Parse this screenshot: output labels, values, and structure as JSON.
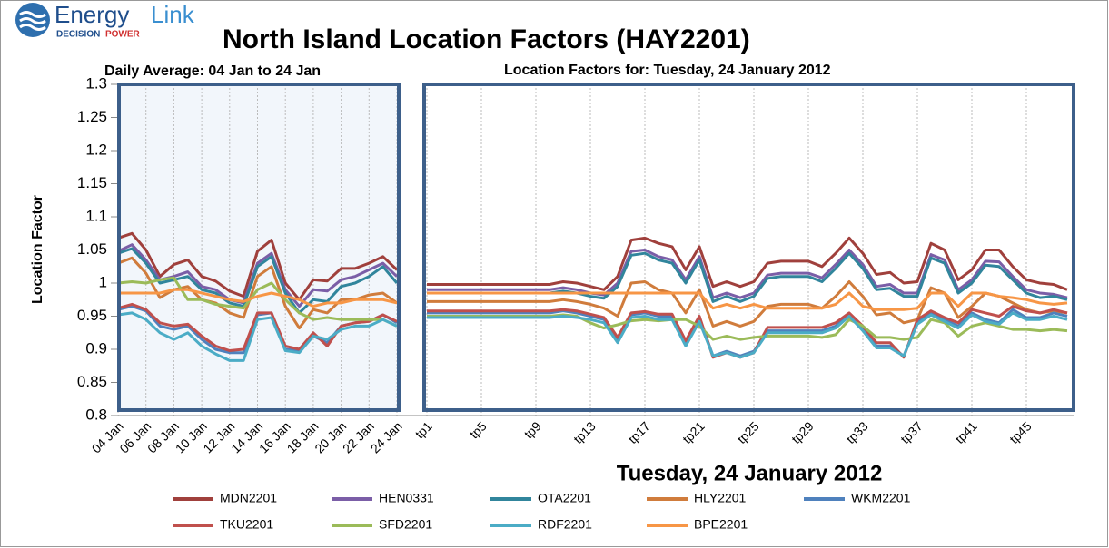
{
  "logo": {
    "words": [
      "Energy",
      "Link"
    ],
    "tagline": [
      "DECISION",
      "POWER"
    ]
  },
  "chart_data": [
    {
      "type": "line",
      "title": "North Island Location Factors (HAY2201)",
      "subtitle": "Daily Average: 04 Jan to 24 Jan",
      "ylabel": "Location Factor",
      "ylim": [
        0.8,
        1.3
      ],
      "yticks": [
        0.8,
        0.85,
        0.9,
        0.95,
        1,
        1.05,
        1.1,
        1.15,
        1.2,
        1.25,
        1.3
      ],
      "grid": true,
      "legend": "bottom",
      "categories": [
        "04 Jan",
        null,
        "06 Jan",
        null,
        "08 Jan",
        null,
        "10 Jan",
        null,
        "12 Jan",
        null,
        "14 Jan",
        null,
        "16 Jan",
        null,
        "18 Jan",
        null,
        "20 Jan",
        null,
        "22 Jan",
        null,
        "24 Jan"
      ],
      "series": [
        {
          "name": "MDN2201",
          "color": "#a0403c",
          "values": [
            1.068,
            1.075,
            1.05,
            1.01,
            1.028,
            1.035,
            1.01,
            1.003,
            0.988,
            0.98,
            1.048,
            1.065,
            1.0,
            0.975,
            1.005,
            1.003,
            1.022,
            1.022,
            1.03,
            1.04,
            1.02
          ]
        },
        {
          "name": "HEN0331",
          "color": "#7b5ea7",
          "values": [
            1.048,
            1.058,
            1.035,
            1.005,
            1.01,
            1.017,
            0.995,
            0.99,
            0.975,
            0.97,
            1.03,
            1.045,
            0.99,
            0.965,
            0.99,
            0.988,
            1.005,
            1.01,
            1.02,
            1.03,
            1.01
          ]
        },
        {
          "name": "OTA2201",
          "color": "#31859c",
          "values": [
            1.045,
            1.052,
            1.03,
            1.0,
            1.005,
            1.01,
            0.99,
            0.985,
            0.97,
            0.965,
            1.025,
            1.04,
            0.985,
            0.955,
            0.975,
            0.972,
            0.995,
            1.0,
            1.01,
            1.025,
            1.0
          ]
        },
        {
          "name": "HLY2201",
          "color": "#d07c3c",
          "values": [
            1.03,
            1.038,
            1.015,
            0.978,
            0.99,
            0.995,
            0.975,
            0.97,
            0.955,
            0.948,
            1.01,
            1.025,
            0.965,
            0.932,
            0.96,
            0.955,
            0.975,
            0.975,
            0.982,
            0.985,
            0.97
          ]
        },
        {
          "name": "WKM2201",
          "color": "#4f81bd",
          "values": [
            0.96,
            0.965,
            0.958,
            0.935,
            0.93,
            0.935,
            0.915,
            0.9,
            0.895,
            0.895,
            0.952,
            0.955,
            0.9,
            0.898,
            0.92,
            0.91,
            0.935,
            0.94,
            0.942,
            0.952,
            0.94
          ]
        },
        {
          "name": "TKU2201",
          "color": "#c0504d",
          "values": [
            0.962,
            0.968,
            0.96,
            0.94,
            0.935,
            0.938,
            0.92,
            0.905,
            0.898,
            0.9,
            0.955,
            0.955,
            0.905,
            0.9,
            0.925,
            0.905,
            0.935,
            0.94,
            0.942,
            0.952,
            0.942
          ]
        },
        {
          "name": "SFD2201",
          "color": "#9bbb59",
          "values": [
            1.0,
            1.002,
            1.0,
            1.005,
            1.008,
            0.975,
            0.975,
            0.968,
            0.965,
            0.962,
            0.99,
            1.0,
            0.975,
            0.955,
            0.945,
            0.948,
            0.945,
            0.945,
            0.945,
            0.945,
            0.935
          ]
        },
        {
          "name": "RDF2201",
          "color": "#4bacc6",
          "values": [
            0.952,
            0.955,
            0.945,
            0.925,
            0.915,
            0.925,
            0.905,
            0.893,
            0.883,
            0.883,
            0.945,
            0.948,
            0.898,
            0.895,
            0.92,
            0.915,
            0.93,
            0.935,
            0.935,
            0.945,
            0.935
          ]
        },
        {
          "name": "BPE2201",
          "color": "#f79646",
          "values": [
            0.985,
            0.985,
            0.985,
            0.985,
            0.99,
            0.99,
            0.985,
            0.98,
            0.975,
            0.972,
            0.98,
            0.985,
            0.98,
            0.975,
            0.965,
            0.97,
            0.97,
            0.975,
            0.975,
            0.975,
            0.97
          ]
        }
      ]
    },
    {
      "type": "line",
      "subtitle": "Location Factors for: Tuesday, 24 January 2012",
      "xlabel": "Tuesday, 24 January 2012",
      "categories": [
        "tp1",
        null,
        null,
        null,
        "tp5",
        null,
        null,
        null,
        "tp9",
        null,
        null,
        null,
        "tp13",
        null,
        null,
        null,
        "tp17",
        null,
        null,
        null,
        "tp21",
        null,
        null,
        null,
        "tp25",
        null,
        null,
        null,
        "tp29",
        null,
        null,
        null,
        "tp33",
        null,
        null,
        null,
        "tp37",
        null,
        null,
        null,
        "tp41",
        null,
        null,
        null,
        "tp45",
        null,
        null,
        null
      ],
      "series": [
        {
          "values": [
            0.998,
            0.998,
            0.998,
            0.998,
            0.998,
            0.998,
            0.998,
            0.998,
            0.998,
            0.998,
            1.002,
            1.0,
            0.995,
            0.99,
            1.01,
            1.065,
            1.068,
            1.06,
            1.055,
            1.02,
            1.055,
            0.995,
            1.002,
            0.995,
            1.002,
            1.03,
            1.033,
            1.033,
            1.033,
            1.025,
            1.045,
            1.068,
            1.045,
            1.013,
            1.016,
            1.0,
            1.002,
            1.06,
            1.05,
            1.005,
            1.02,
            1.05,
            1.05,
            1.025,
            1.005,
            1.0,
            0.998,
            0.99
          ]
        },
        {
          "values": [
            0.99,
            0.99,
            0.99,
            0.99,
            0.99,
            0.99,
            0.99,
            0.99,
            0.99,
            0.99,
            0.993,
            0.99,
            0.985,
            0.982,
            1.0,
            1.048,
            1.05,
            1.04,
            1.035,
            1.005,
            1.04,
            0.978,
            0.985,
            0.978,
            0.985,
            1.012,
            1.015,
            1.015,
            1.015,
            1.008,
            1.028,
            1.05,
            1.028,
            0.995,
            0.998,
            0.985,
            0.985,
            1.043,
            1.035,
            0.99,
            1.005,
            1.033,
            1.032,
            1.01,
            0.99,
            0.985,
            0.983,
            0.978
          ]
        },
        {
          "values": [
            0.985,
            0.985,
            0.985,
            0.985,
            0.985,
            0.985,
            0.985,
            0.985,
            0.985,
            0.985,
            0.988,
            0.985,
            0.98,
            0.977,
            0.995,
            1.042,
            1.045,
            1.035,
            1.03,
            1.0,
            1.035,
            0.972,
            0.98,
            0.972,
            0.98,
            1.007,
            1.01,
            1.01,
            1.01,
            1.002,
            1.022,
            1.045,
            1.022,
            0.99,
            0.992,
            0.98,
            0.98,
            1.038,
            1.03,
            0.985,
            1.0,
            1.027,
            1.025,
            1.005,
            0.985,
            0.978,
            0.98,
            0.975
          ]
        },
        {
          "values": [
            0.972,
            0.972,
            0.972,
            0.972,
            0.972,
            0.972,
            0.972,
            0.972,
            0.972,
            0.972,
            0.975,
            0.972,
            0.968,
            0.962,
            0.95,
            1.0,
            1.002,
            0.99,
            0.985,
            0.955,
            0.99,
            0.935,
            0.942,
            0.935,
            0.942,
            0.965,
            0.968,
            0.968,
            0.968,
            0.962,
            0.98,
            1.002,
            0.98,
            0.952,
            0.955,
            0.94,
            0.945,
            0.993,
            0.985,
            0.948,
            0.965,
            0.985,
            0.98,
            0.97,
            0.96,
            0.955,
            0.958,
            0.955
          ]
        },
        {
          "values": [
            0.955,
            0.955,
            0.955,
            0.955,
            0.955,
            0.955,
            0.955,
            0.955,
            0.955,
            0.955,
            0.958,
            0.955,
            0.95,
            0.945,
            0.915,
            0.952,
            0.955,
            0.95,
            0.95,
            0.91,
            0.948,
            0.89,
            0.897,
            0.89,
            0.897,
            0.928,
            0.928,
            0.928,
            0.928,
            0.928,
            0.935,
            0.952,
            0.93,
            0.905,
            0.905,
            0.89,
            0.94,
            0.955,
            0.945,
            0.935,
            0.955,
            0.945,
            0.94,
            0.96,
            0.948,
            0.948,
            0.955,
            0.95
          ]
        },
        {
          "values": [
            0.958,
            0.958,
            0.958,
            0.958,
            0.958,
            0.958,
            0.958,
            0.958,
            0.958,
            0.958,
            0.96,
            0.958,
            0.953,
            0.948,
            0.918,
            0.955,
            0.957,
            0.953,
            0.953,
            0.913,
            0.95,
            0.888,
            0.895,
            0.888,
            0.895,
            0.933,
            0.933,
            0.933,
            0.933,
            0.933,
            0.94,
            0.955,
            0.935,
            0.91,
            0.91,
            0.888,
            0.945,
            0.958,
            0.948,
            0.94,
            0.96,
            0.955,
            0.95,
            0.965,
            0.958,
            0.955,
            0.96,
            0.955
          ]
        },
        {
          "values": [
            0.95,
            0.95,
            0.95,
            0.95,
            0.95,
            0.95,
            0.95,
            0.95,
            0.95,
            0.95,
            0.952,
            0.95,
            0.94,
            0.932,
            0.937,
            0.943,
            0.945,
            0.943,
            0.945,
            0.945,
            0.935,
            0.915,
            0.92,
            0.915,
            0.918,
            0.92,
            0.92,
            0.92,
            0.92,
            0.918,
            0.922,
            0.945,
            0.935,
            0.918,
            0.918,
            0.915,
            0.918,
            0.945,
            0.94,
            0.92,
            0.935,
            0.94,
            0.935,
            0.93,
            0.93,
            0.928,
            0.93,
            0.928
          ]
        },
        {
          "values": [
            0.948,
            0.948,
            0.948,
            0.948,
            0.948,
            0.948,
            0.948,
            0.948,
            0.948,
            0.948,
            0.95,
            0.948,
            0.945,
            0.94,
            0.91,
            0.948,
            0.95,
            0.945,
            0.945,
            0.905,
            0.942,
            0.89,
            0.895,
            0.888,
            0.895,
            0.925,
            0.925,
            0.925,
            0.925,
            0.925,
            0.932,
            0.95,
            0.928,
            0.902,
            0.902,
            0.89,
            0.938,
            0.952,
            0.942,
            0.932,
            0.952,
            0.942,
            0.938,
            0.955,
            0.945,
            0.945,
            0.95,
            0.945
          ]
        },
        {
          "values": [
            0.985,
            0.985,
            0.985,
            0.985,
            0.985,
            0.985,
            0.985,
            0.985,
            0.985,
            0.985,
            0.985,
            0.985,
            0.985,
            0.985,
            0.985,
            0.985,
            0.985,
            0.985,
            0.985,
            0.985,
            0.985,
            0.962,
            0.968,
            0.962,
            0.968,
            0.962,
            0.962,
            0.962,
            0.962,
            0.962,
            0.968,
            0.985,
            0.965,
            0.96,
            0.96,
            0.96,
            0.962,
            0.985,
            0.985,
            0.965,
            0.985,
            0.985,
            0.98,
            0.978,
            0.975,
            0.97,
            0.968,
            0.97
          ]
        }
      ]
    }
  ]
}
